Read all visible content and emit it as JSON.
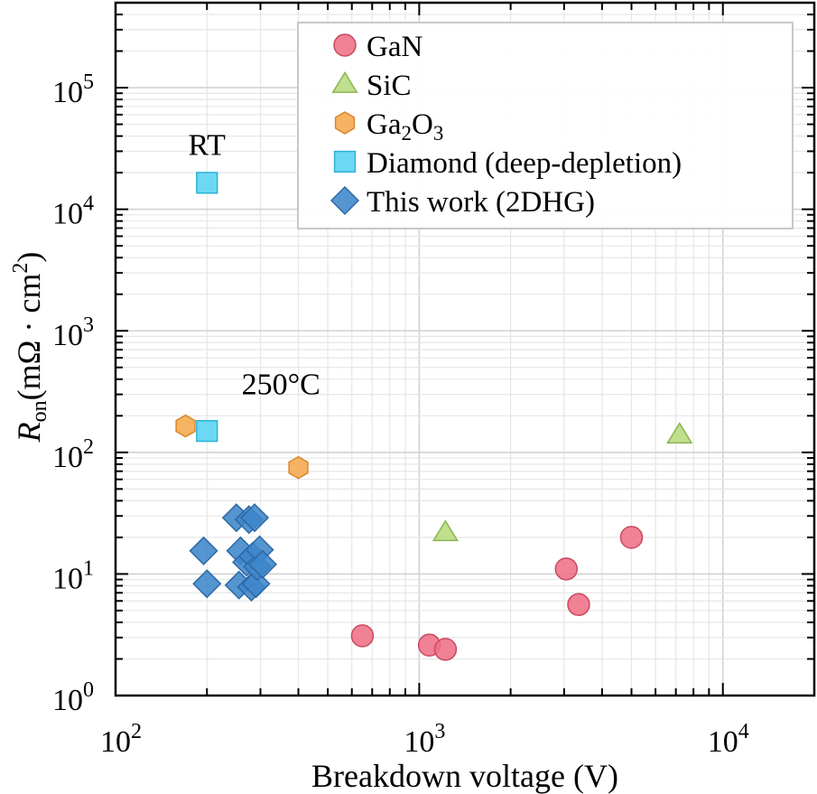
{
  "chart_data": {
    "type": "scatter",
    "title": "",
    "xlabel": "Breakdown voltage (V)",
    "ylabel": {
      "main": "R",
      "sub": "on",
      "units": "(mΩ · cm",
      "sup": "2",
      "close": ")"
    },
    "xscale": "log",
    "yscale": "log",
    "xlim": [
      100,
      20000
    ],
    "ylim": [
      1,
      500000
    ],
    "grid": true,
    "legend_position": "top-right",
    "x_ticks": [
      {
        "value": 100,
        "base": "10",
        "exp": "2"
      },
      {
        "value": 1000,
        "base": "10",
        "exp": "3"
      },
      {
        "value": 10000,
        "base": "10",
        "exp": "4"
      }
    ],
    "y_ticks": [
      {
        "value": 1,
        "base": "10",
        "exp": "0"
      },
      {
        "value": 10,
        "base": "10",
        "exp": "1"
      },
      {
        "value": 100,
        "base": "10",
        "exp": "2"
      },
      {
        "value": 1000,
        "base": "10",
        "exp": "3"
      },
      {
        "value": 10000,
        "base": "10",
        "exp": "4"
      },
      {
        "value": 100000,
        "base": "10",
        "exp": "5"
      }
    ],
    "series": [
      {
        "name": "GaN",
        "marker": "circle",
        "color": "#ef6f85",
        "edge": "#c94a60",
        "points": [
          [
            650,
            3.1
          ],
          [
            1080,
            2.6
          ],
          [
            1220,
            2.4
          ],
          [
            3050,
            11
          ],
          [
            3350,
            5.6
          ],
          [
            5000,
            20
          ]
        ]
      },
      {
        "name": "SiC",
        "marker": "triangle",
        "color": "#b7dc7e",
        "edge": "#8cb451",
        "points": [
          [
            1220,
            22
          ],
          [
            7200,
            140
          ]
        ]
      },
      {
        "name": "Ga2O3",
        "name_parts": {
          "a": "Ga",
          "a_sub": "2",
          "b": "O",
          "b_sub": "3"
        },
        "marker": "hexagon",
        "color": "#f6a94e",
        "edge": "#d9862a",
        "points": [
          [
            170,
            165
          ],
          [
            400,
            75
          ]
        ]
      },
      {
        "name": "Diamond (deep-depletion)",
        "marker": "square",
        "color": "#58d3f2",
        "edge": "#2db2d6",
        "points": [
          [
            200,
            16500
          ],
          [
            200,
            150
          ]
        ]
      },
      {
        "name": "This work (2DHG)",
        "marker": "diamond",
        "color": "#3e86c9",
        "edge": "#2c69a8",
        "points": [
          [
            195,
            15.5
          ],
          [
            200,
            8.3
          ],
          [
            250,
            29
          ],
          [
            255,
            8.1
          ],
          [
            258,
            15.5
          ],
          [
            270,
            12.5
          ],
          [
            275,
            28
          ],
          [
            280,
            7.8
          ],
          [
            283,
            14
          ],
          [
            287,
            29
          ],
          [
            290,
            8.3
          ],
          [
            293,
            11.5
          ],
          [
            298,
            15.8
          ],
          [
            305,
            12
          ]
        ]
      }
    ],
    "annotations": [
      {
        "text": "RT",
        "x": 200,
        "y": 28000
      },
      {
        "text": "250°C",
        "x": 260,
        "y": 300
      }
    ]
  }
}
